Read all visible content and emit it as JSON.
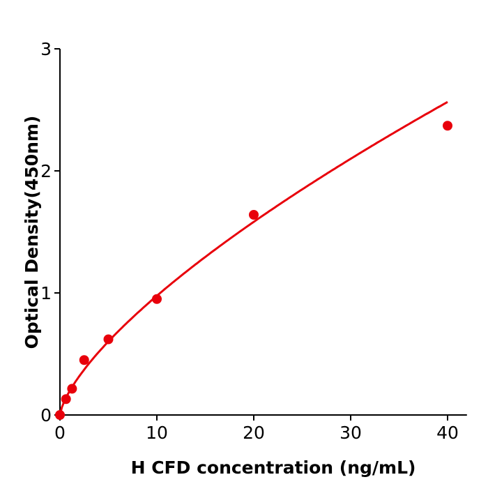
{
  "chart_data": {
    "type": "scatter",
    "title": "",
    "xlabel": "H  CFD concentration (ng/mL)",
    "ylabel": "Optical Density(450nm)",
    "xlim": [
      0,
      42
    ],
    "ylim": [
      0,
      3
    ],
    "xticks": [
      0,
      10,
      20,
      30,
      40
    ],
    "yticks": [
      0,
      1,
      2,
      3
    ],
    "grid": false,
    "colors": {
      "series": "#e8000b",
      "axis": "#000000"
    },
    "series": [
      {
        "x": [
          0,
          0.625,
          1.25,
          2.5,
          5,
          10,
          20,
          40
        ],
        "y": [
          0,
          0.13,
          0.215,
          0.45,
          0.62,
          0.95,
          1.64,
          2.37
        ],
        "fit_line": true
      }
    ]
  }
}
